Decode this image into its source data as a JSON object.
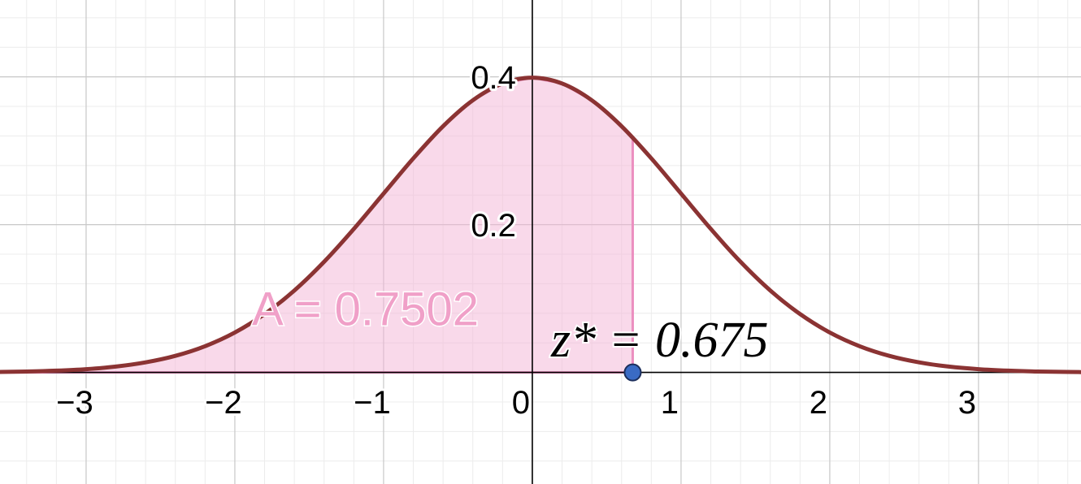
{
  "chart_data": {
    "type": "line",
    "x": [
      -3.8,
      -3.6,
      -3.4,
      -3.2,
      -3.0,
      -2.8,
      -2.6,
      -2.4,
      -2.2,
      -2.0,
      -1.8,
      -1.6,
      -1.4,
      -1.2,
      -1.0,
      -0.8,
      -0.6,
      -0.4,
      -0.2,
      0,
      0.2,
      0.4,
      0.6,
      0.8,
      1.0,
      1.2,
      1.4,
      1.6,
      1.8,
      2.0,
      2.2,
      2.4,
      2.6,
      2.8,
      3.0,
      3.2,
      3.4,
      3.6,
      3.8
    ],
    "series": [
      {
        "color": "#8b3333",
        "values": [
          0.0003,
          0.0006,
          0.0012,
          0.0024,
          0.0044,
          0.0079,
          0.0136,
          0.0224,
          0.0355,
          0.054,
          0.079,
          0.1109,
          0.1497,
          0.1942,
          0.242,
          0.2897,
          0.3332,
          0.3683,
          0.391,
          0.3989,
          0.391,
          0.3683,
          0.3332,
          0.2897,
          0.242,
          0.1942,
          0.1497,
          0.1109,
          0.079,
          0.054,
          0.0355,
          0.0224,
          0.0136,
          0.0079,
          0.0044,
          0.0024,
          0.0012,
          0.0006,
          0.0003
        ]
      }
    ],
    "xlim": [
      -3.579,
      3.689
    ],
    "ylim": [
      -0.151,
      0.504
    ],
    "xticks": [
      {
        "value": -3,
        "label": "−3"
      },
      {
        "value": -2,
        "label": "−2"
      },
      {
        "value": -1,
        "label": "−1"
      },
      0,
      1,
      2,
      3
    ],
    "yticks": [
      0.2,
      0.4
    ],
    "grid": true,
    "shade_color": "#f4b3d6",
    "area_label": "A = 0.7502",
    "z_point": {
      "x": 0.675,
      "y": 0,
      "label": "z* = 0.675",
      "color": "#3a6bc4"
    }
  }
}
